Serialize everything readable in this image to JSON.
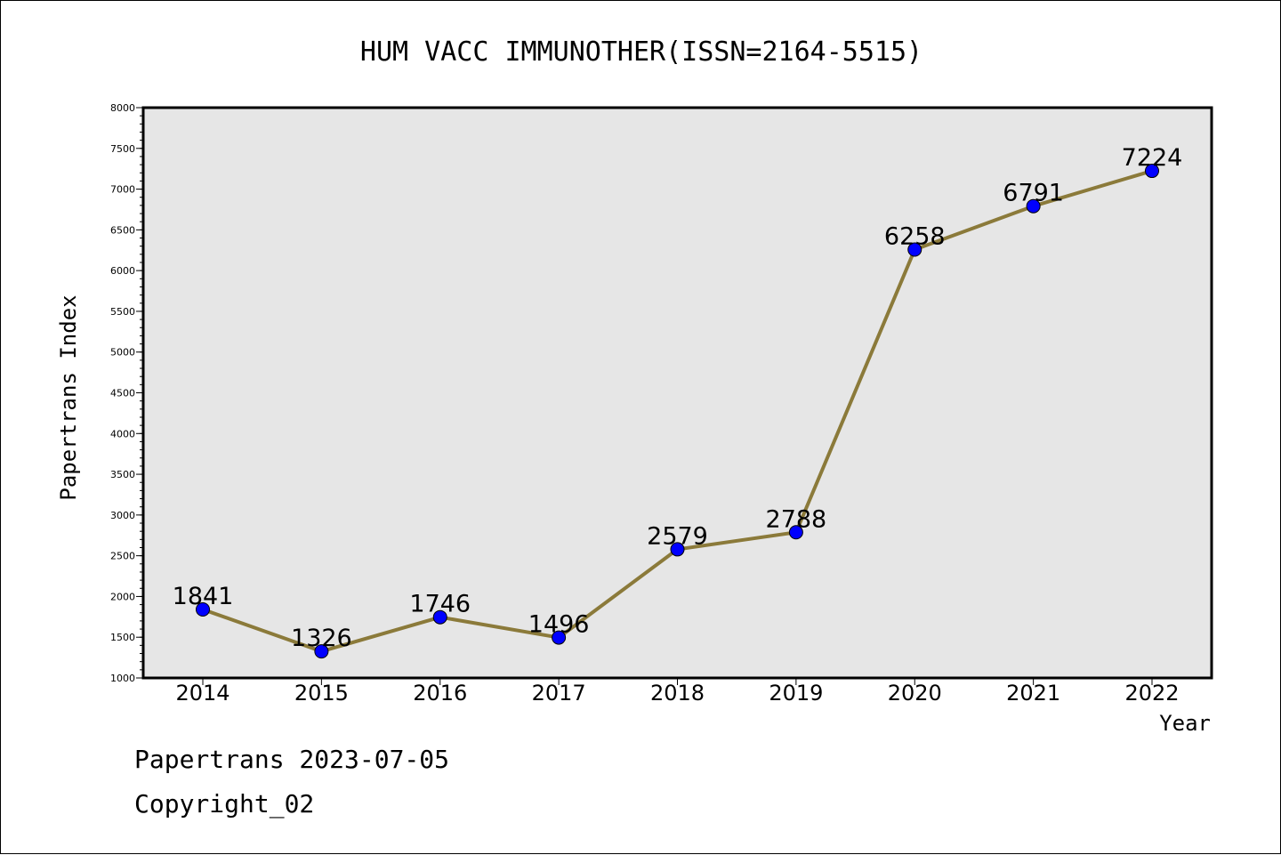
{
  "chart_data": {
    "type": "line",
    "title": "HUM VACC IMMUNOTHER(ISSN=2164-5515)",
    "xlabel": "Year",
    "ylabel": "Papertrans Index",
    "categories": [
      "2014",
      "2015",
      "2016",
      "2017",
      "2018",
      "2019",
      "2020",
      "2021",
      "2022"
    ],
    "series": [
      {
        "values": [
          1841,
          1326,
          1746,
          1496,
          2579,
          2788,
          6258,
          6791,
          7224
        ]
      }
    ],
    "ylim": [
      1000,
      8000
    ],
    "y_ticks": [
      "1000",
      "1500",
      "2000",
      "2500",
      "3000",
      "3500",
      "4000",
      "4500",
      "5000",
      "5500",
      "6000",
      "6500",
      "7000",
      "7500",
      "8000"
    ],
    "data_labels": [
      "1841",
      "1326",
      "1746",
      "1496",
      "2579",
      "2788",
      "6258",
      "6791",
      "7224"
    ],
    "grid": false,
    "legend": "none",
    "colors": {
      "line": "#8b7a3a",
      "marker": "#0000ff",
      "plot_background": "#e6e6e6"
    }
  },
  "footer": {
    "date_line": "Papertrans 2023-07-05",
    "copyright_line": "Copyright_02"
  }
}
